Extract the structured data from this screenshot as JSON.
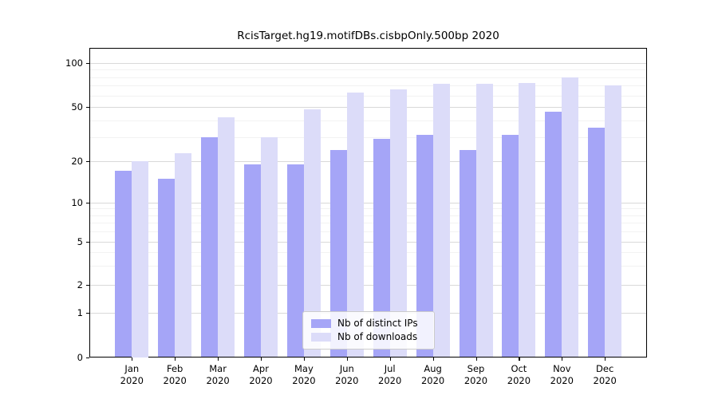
{
  "chart_data": {
    "type": "bar",
    "title": "RcisTarget.hg19.motifDBs.cisbpOnly.500bp 2020",
    "categories": [
      "Jan",
      "Feb",
      "Mar",
      "Apr",
      "May",
      "Jun",
      "Jul",
      "Aug",
      "Sep",
      "Oct",
      "Nov",
      "Dec"
    ],
    "x_tick_year": "2020",
    "series": [
      {
        "name": "Nb of distinct IPs",
        "color": "#a5a5f7",
        "values": [
          17,
          15,
          30,
          19,
          19,
          24,
          29,
          31,
          24,
          31,
          46,
          35
        ]
      },
      {
        "name": "Nb of downloads",
        "color": "#dcdcf9",
        "values": [
          20,
          23,
          42,
          30,
          48,
          63,
          66,
          72,
          72,
          73,
          80,
          70
        ]
      }
    ],
    "xlabel": "",
    "ylabel": "",
    "yscale": "pseudo-log",
    "ylim": [
      0,
      110
    ],
    "yticks": [
      0,
      1,
      2,
      5,
      10,
      20,
      50,
      100
    ],
    "minor_yticks": [
      3,
      4,
      6,
      7,
      8,
      9,
      30,
      40,
      60,
      70,
      80,
      90
    ],
    "grid": "horizontal-major-and-minor",
    "legend_position": "lower center"
  }
}
